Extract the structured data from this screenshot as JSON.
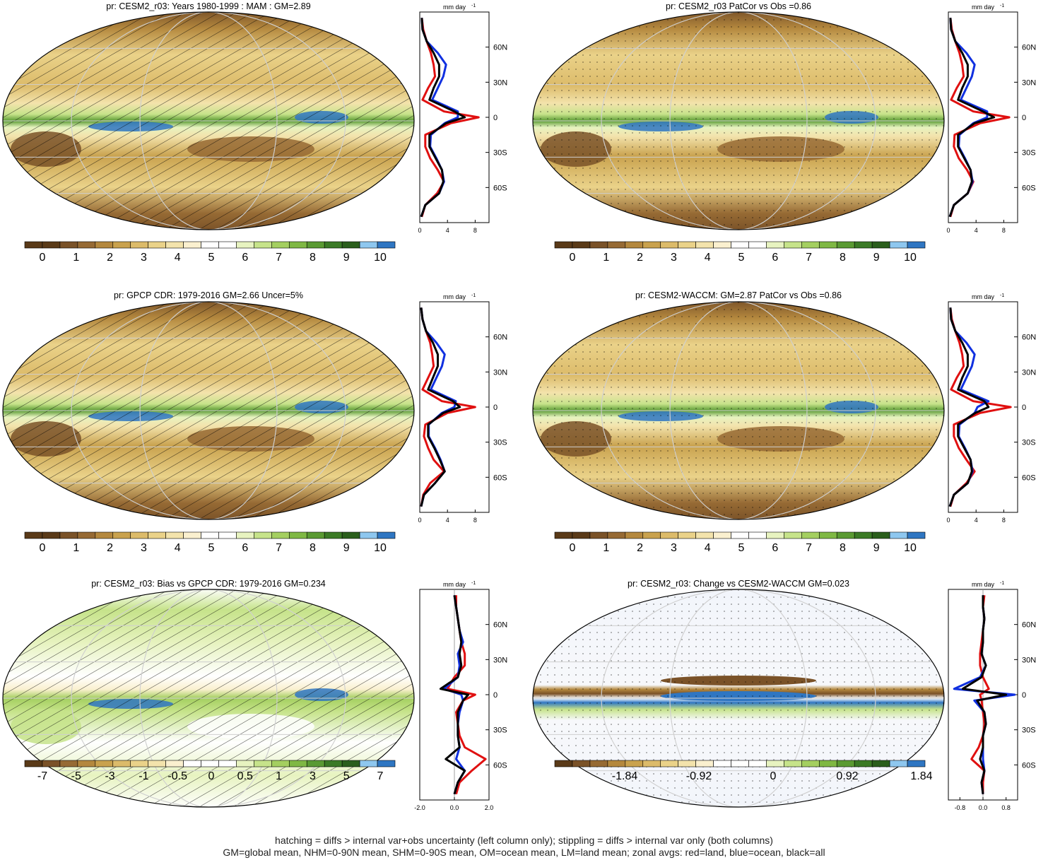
{
  "palette": {
    "full": [
      "#5a3a18",
      "#7a5228",
      "#966a34",
      "#b4883e",
      "#c9a24e",
      "#dcbb6a",
      "#ead289",
      "#f3e3ac",
      "#faf0cf",
      "#ffffff",
      "#e7f3c0",
      "#c6e38a",
      "#a4cf60",
      "#7fb844",
      "#5a9a33",
      "#3b7a26",
      "#2a5e1c",
      "#8ec7ef",
      "#2f76c2"
    ]
  },
  "panels": [
    {
      "id": "p1",
      "title": "pr: CESM2_r03: Years 1980-1999 : MAM : GM=2.89",
      "kind": "mean",
      "overlay": "hatch",
      "colorbar_labels": [
        "0",
        "1",
        "2",
        "3",
        "4",
        "5",
        "6",
        "7",
        "8",
        "9",
        "10"
      ],
      "profile": {
        "unit_label": "mm day",
        "unit_exp": "-1",
        "xticks": [
          "0",
          "4",
          "8"
        ],
        "xlim": [
          0,
          10
        ],
        "lat_labels": [
          "60N",
          "30N",
          "0",
          "30S",
          "60S"
        ]
      }
    },
    {
      "id": "p2",
      "title": "pr: CESM2_r03 PatCor vs Obs =0.86",
      "kind": "mean",
      "overlay": "stipple",
      "colorbar_labels": [
        "0",
        "1",
        "2",
        "3",
        "4",
        "5",
        "6",
        "7",
        "8",
        "9",
        "10"
      ],
      "profile": {
        "unit_label": "mm day",
        "unit_exp": "-1",
        "xticks": [
          "0",
          "4",
          "8"
        ],
        "xlim": [
          0,
          10
        ],
        "lat_labels": [
          "60N",
          "30N",
          "0",
          "30S",
          "60S"
        ]
      }
    },
    {
      "id": "p3",
      "title": "pr: GPCP CDR: 1979-2016 GM=2.66 Uncer=5%",
      "kind": "mean",
      "overlay": "hatch",
      "colorbar_labels": [
        "0",
        "1",
        "2",
        "3",
        "4",
        "5",
        "6",
        "7",
        "8",
        "9",
        "10"
      ],
      "profile": {
        "unit_label": "mm day",
        "unit_exp": "-1",
        "xticks": [
          "0",
          "4",
          "8"
        ],
        "xlim": [
          0,
          10
        ],
        "lat_labels": [
          "60N",
          "30N",
          "0",
          "30S",
          "60S"
        ]
      }
    },
    {
      "id": "p4",
      "title": "pr: CESM2-WACCM: GM=2.87 PatCor vs Obs =0.86",
      "kind": "mean",
      "overlay": "stipple",
      "colorbar_labels": [
        "0",
        "1",
        "2",
        "3",
        "4",
        "5",
        "6",
        "7",
        "8",
        "9",
        "10"
      ],
      "profile": {
        "unit_label": "mm day",
        "unit_exp": "-1",
        "xticks": [
          "0",
          "4",
          "8"
        ],
        "xlim": [
          0,
          10
        ],
        "lat_labels": [
          "60N",
          "30N",
          "0",
          "30S",
          "60S"
        ]
      }
    },
    {
      "id": "p5",
      "title": "pr: CESM2_r03: Bias vs GPCP CDR: 1979-2016 GM=0.234",
      "kind": "bias",
      "overlay": "hatch",
      "colorbar_labels": [
        "-7",
        "-5",
        "-3",
        "-1",
        "-0.5",
        "0",
        "0.5",
        "1",
        "3",
        "5",
        "7"
      ],
      "profile": {
        "unit_label": "mm day",
        "unit_exp": "-1",
        "xticks": [
          "-2.0",
          "0.0",
          "2.0"
        ],
        "xlim": [
          -2,
          2
        ],
        "lat_labels": [
          "60N",
          "30N",
          "0",
          "30S",
          "60S"
        ]
      }
    },
    {
      "id": "p6",
      "title": "pr: CESM2_r03: Change vs CESM2-WACCM GM=0.023",
      "kind": "change",
      "overlay": "stipple",
      "colorbar_labels": [
        "-1.84",
        "-0.92",
        "0",
        "0.92",
        "1.84"
      ],
      "profile": {
        "unit_label": "mm day",
        "unit_exp": "-1",
        "xticks": [
          "-0.8",
          "0.0",
          "0.8"
        ],
        "xlim": [
          -1.2,
          1.2
        ],
        "lat_labels": [
          "60N",
          "30N",
          "0",
          "30S",
          "60S"
        ]
      }
    }
  ],
  "caption": {
    "line1": "hatching = diffs > internal var+obs uncertainty (left column only); stippling = diffs > internal var only (both columns)",
    "line2": "GM=global mean, NHM=0-90N mean, SHM=0-90S mean, OM=ocean mean, LM=land mean; zonal avgs: red=land, blue=ocean, black=all"
  },
  "chart_data": [
    {
      "type": "line",
      "title": "pr: CESM2_r03: Years 1980-1999 : MAM : GM=2.89",
      "xlabel": "mm day-1",
      "ylabel": "",
      "ylim": [
        -90,
        90
      ],
      "xlim": [
        0,
        10
      ],
      "legend": "none",
      "series": [
        {
          "color": "#e01010",
          "lat": [
            -85,
            -75,
            -65,
            -55,
            -45,
            -35,
            -25,
            -15,
            -5,
            0,
            5,
            15,
            25,
            35,
            45,
            55,
            65,
            75,
            85
          ],
          "values": [
            0.3,
            0.8,
            2.5,
            3.5,
            2.6,
            1.5,
            0.8,
            0.8,
            4.5,
            8.5,
            3.5,
            0.4,
            1.2,
            2.2,
            2.0,
            1.6,
            1.0,
            0.5,
            0.3
          ]
        },
        {
          "color": "#1030e0",
          "lat": [
            -85,
            -75,
            -65,
            -55,
            -45,
            -35,
            -25,
            -15,
            -5,
            0,
            5,
            15,
            25,
            35,
            45,
            55,
            65,
            75,
            85
          ],
          "values": [
            0.2,
            0.8,
            2.8,
            3.5,
            3.2,
            2.4,
            1.5,
            1.6,
            3.6,
            5.5,
            5.5,
            1.8,
            2.6,
            3.4,
            3.8,
            2.6,
            1.0,
            0.4,
            0.3
          ]
        },
        {
          "color": "#000000",
          "lat": [
            -85,
            -75,
            -65,
            -55,
            -45,
            -35,
            -25,
            -15,
            -5,
            0,
            5,
            15,
            25,
            35,
            45,
            55,
            65,
            75,
            85
          ],
          "values": [
            0.2,
            0.8,
            2.8,
            3.4,
            3.2,
            2.3,
            1.4,
            1.4,
            3.8,
            6.5,
            5.0,
            1.4,
            2.0,
            2.8,
            2.8,
            2.0,
            1.0,
            0.4,
            0.3
          ]
        }
      ]
    },
    {
      "type": "line",
      "title": "pr: CESM2_r03 PatCor vs Obs =0.86",
      "xlabel": "mm day-1",
      "ylim": [
        -90,
        90
      ],
      "xlim": [
        0,
        10
      ],
      "legend": "none",
      "series": [
        {
          "color": "#e01010",
          "lat": [
            -85,
            -75,
            -65,
            -55,
            -45,
            -35,
            -25,
            -15,
            -5,
            0,
            5,
            15,
            25,
            35,
            45,
            55,
            65,
            75,
            85
          ],
          "values": [
            0.3,
            0.8,
            2.8,
            3.6,
            2.7,
            1.5,
            0.8,
            0.9,
            4.6,
            8.8,
            3.6,
            0.4,
            1.2,
            2.2,
            2.0,
            1.6,
            1.0,
            0.5,
            0.3
          ]
        },
        {
          "color": "#1030e0",
          "lat": [
            -85,
            -75,
            -65,
            -55,
            -45,
            -35,
            -25,
            -15,
            -5,
            0,
            5,
            15,
            25,
            35,
            45,
            55,
            65,
            75,
            85
          ],
          "values": [
            0.2,
            0.8,
            2.8,
            3.5,
            3.2,
            2.4,
            1.5,
            1.6,
            3.6,
            5.6,
            5.6,
            1.8,
            2.6,
            3.4,
            3.8,
            2.6,
            1.0,
            0.4,
            0.3
          ]
        },
        {
          "color": "#000000",
          "lat": [
            -85,
            -75,
            -65,
            -55,
            -45,
            -35,
            -25,
            -15,
            -5,
            0,
            5,
            15,
            25,
            35,
            45,
            55,
            65,
            75,
            85
          ],
          "values": [
            0.2,
            0.8,
            2.8,
            3.4,
            3.2,
            2.3,
            1.4,
            1.4,
            3.8,
            6.6,
            5.0,
            1.4,
            2.0,
            2.8,
            2.8,
            2.0,
            1.0,
            0.4,
            0.3
          ]
        }
      ]
    },
    {
      "type": "line",
      "title": "pr: GPCP CDR: 1979-2016 GM=2.66 Uncer=5%",
      "xlabel": "mm day-1",
      "ylim": [
        -90,
        90
      ],
      "xlim": [
        0,
        10
      ],
      "legend": "none",
      "series": [
        {
          "color": "#e01010",
          "lat": [
            -85,
            -75,
            -65,
            -55,
            -45,
            -35,
            -25,
            -15,
            -5,
            0,
            5,
            15,
            25,
            35,
            45,
            55,
            65,
            75,
            85
          ],
          "values": [
            0.2,
            0.5,
            1.5,
            3.5,
            2.0,
            1.2,
            0.6,
            0.8,
            4.0,
            8.0,
            3.2,
            0.4,
            1.2,
            2.0,
            1.8,
            1.5,
            0.9,
            0.4,
            0.2
          ]
        },
        {
          "color": "#1030e0",
          "lat": [
            -85,
            -75,
            -65,
            -55,
            -45,
            -35,
            -25,
            -15,
            -5,
            0,
            5,
            15,
            25,
            35,
            45,
            55,
            65,
            75,
            85
          ],
          "values": [
            0.2,
            0.6,
            2.2,
            3.6,
            3.0,
            2.2,
            1.3,
            1.3,
            3.2,
            5.0,
            5.2,
            1.6,
            2.4,
            3.2,
            3.6,
            2.4,
            0.9,
            0.4,
            0.2
          ]
        },
        {
          "color": "#000000",
          "lat": [
            -85,
            -75,
            -65,
            -55,
            -45,
            -35,
            -25,
            -15,
            -5,
            0,
            5,
            15,
            25,
            35,
            45,
            55,
            65,
            75,
            85
          ],
          "values": [
            0.2,
            0.6,
            2.2,
            3.6,
            2.9,
            2.1,
            1.2,
            1.2,
            3.4,
            5.8,
            4.8,
            1.2,
            1.9,
            2.6,
            2.6,
            1.9,
            0.9,
            0.4,
            0.2
          ]
        }
      ]
    },
    {
      "type": "line",
      "title": "pr: CESM2-WACCM: GM=2.87 PatCor vs Obs =0.86",
      "xlabel": "mm day-1",
      "ylim": [
        -90,
        90
      ],
      "xlim": [
        0,
        10
      ],
      "legend": "none",
      "series": [
        {
          "color": "#e01010",
          "lat": [
            -85,
            -75,
            -65,
            -55,
            -45,
            -35,
            -25,
            -15,
            -5,
            0,
            5,
            15,
            25,
            35,
            45,
            55,
            65,
            75,
            85
          ],
          "values": [
            0.3,
            0.8,
            2.6,
            3.8,
            2.6,
            1.5,
            0.8,
            0.8,
            4.6,
            9.0,
            3.6,
            0.4,
            1.2,
            2.2,
            2.0,
            1.6,
            1.0,
            0.5,
            0.3
          ]
        },
        {
          "color": "#1030e0",
          "lat": [
            -85,
            -75,
            -65,
            -55,
            -45,
            -35,
            -25,
            -15,
            -5,
            0,
            5,
            15,
            25,
            35,
            45,
            55,
            65,
            75,
            85
          ],
          "values": [
            0.2,
            0.8,
            2.8,
            3.5,
            3.2,
            2.4,
            1.5,
            1.6,
            3.8,
            4.2,
            5.8,
            1.8,
            2.6,
            3.4,
            3.8,
            2.6,
            1.0,
            0.4,
            0.3
          ]
        },
        {
          "color": "#000000",
          "lat": [
            -85,
            -75,
            -65,
            -55,
            -45,
            -35,
            -25,
            -15,
            -5,
            0,
            5,
            15,
            25,
            35,
            45,
            55,
            65,
            75,
            85
          ],
          "values": [
            0.2,
            0.8,
            2.8,
            3.4,
            3.2,
            2.3,
            1.4,
            1.4,
            3.9,
            5.8,
            5.2,
            1.4,
            2.0,
            2.8,
            2.8,
            2.0,
            1.0,
            0.4,
            0.3
          ]
        }
      ]
    },
    {
      "type": "line",
      "title": "pr: CESM2_r03: Bias vs GPCP CDR: 1979-2016 GM=0.234",
      "xlabel": "mm day-1",
      "ylim": [
        -90,
        90
      ],
      "xlim": [
        -2,
        2
      ],
      "legend": "none",
      "series": [
        {
          "color": "#e01010",
          "lat": [
            -85,
            -75,
            -65,
            -55,
            -45,
            -35,
            -25,
            -15,
            -5,
            0,
            5,
            15,
            25,
            35,
            45,
            55,
            65,
            75,
            85
          ],
          "values": [
            0.1,
            0.3,
            1.0,
            1.8,
            0.6,
            0.3,
            0.2,
            0.1,
            0.5,
            1.2,
            -0.4,
            0.0,
            0.6,
            0.6,
            0.4,
            0.3,
            0.2,
            0.1,
            0.1
          ]
        },
        {
          "color": "#1030e0",
          "lat": [
            -85,
            -75,
            -65,
            -55,
            -45,
            -35,
            -25,
            -15,
            -5,
            0,
            5,
            15,
            25,
            35,
            45,
            55,
            65,
            75,
            85
          ],
          "values": [
            0.0,
            0.2,
            0.6,
            0.1,
            0.3,
            0.2,
            0.2,
            0.3,
            0.5,
            0.4,
            -0.6,
            0.2,
            0.3,
            0.2,
            0.5,
            0.3,
            0.2,
            0.1,
            0.0
          ]
        },
        {
          "color": "#000000",
          "lat": [
            -85,
            -75,
            -65,
            -55,
            -45,
            -35,
            -25,
            -15,
            -5,
            0,
            5,
            15,
            25,
            35,
            45,
            55,
            65,
            75,
            85
          ],
          "values": [
            0.0,
            0.2,
            0.6,
            -0.5,
            0.3,
            0.2,
            0.2,
            0.2,
            0.5,
            0.8,
            -0.8,
            0.2,
            0.4,
            0.3,
            0.4,
            0.3,
            0.2,
            0.1,
            0.0
          ]
        }
      ]
    },
    {
      "type": "line",
      "title": "pr: CESM2_r03: Change vs CESM2-WACCM GM=0.023",
      "xlabel": "mm day-1",
      "ylim": [
        -90,
        90
      ],
      "xlim": [
        -1.2,
        1.2
      ],
      "legend": "none",
      "series": [
        {
          "color": "#e01010",
          "lat": [
            -85,
            -75,
            -65,
            -55,
            -45,
            -35,
            -25,
            -15,
            -5,
            0,
            5,
            15,
            25,
            35,
            45,
            55,
            65,
            75,
            85
          ],
          "values": [
            0.0,
            0.0,
            0.05,
            -0.4,
            -0.15,
            0.0,
            0.05,
            0.0,
            -0.05,
            -0.1,
            0.2,
            0.0,
            -0.1,
            -0.1,
            -0.05,
            0.0,
            0.05,
            0.0,
            0.05
          ]
        },
        {
          "color": "#1030e0",
          "lat": [
            -85,
            -75,
            -65,
            -55,
            -45,
            -35,
            -25,
            -15,
            -5,
            0,
            5,
            15,
            25,
            35,
            45,
            55,
            65,
            75,
            85
          ],
          "values": [
            0.0,
            -0.05,
            0.05,
            0.0,
            0.0,
            0.0,
            0.1,
            0.05,
            -0.3,
            1.1,
            -1.0,
            -0.1,
            0.1,
            -0.05,
            0.0,
            0.0,
            0.05,
            0.0,
            0.0
          ]
        },
        {
          "color": "#000000",
          "lat": [
            -85,
            -75,
            -65,
            -55,
            -45,
            -35,
            -25,
            -15,
            -5,
            0,
            5,
            15,
            25,
            35,
            45,
            55,
            65,
            75,
            85
          ],
          "values": [
            0.0,
            -0.05,
            0.05,
            -0.1,
            0.0,
            0.0,
            0.1,
            0.05,
            -0.2,
            0.8,
            -0.7,
            -0.05,
            0.1,
            -0.05,
            0.0,
            0.0,
            0.05,
            0.0,
            0.0
          ]
        }
      ]
    }
  ]
}
